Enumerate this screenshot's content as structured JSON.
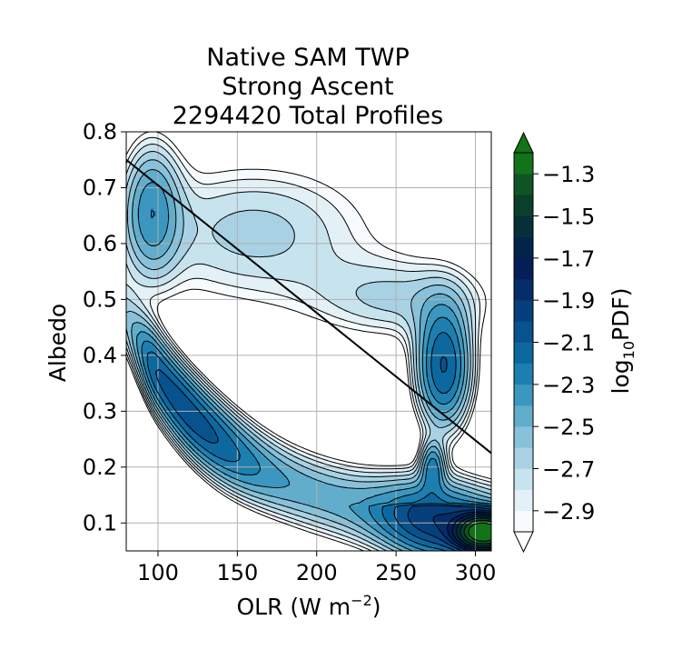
{
  "chart_data": {
    "type": "contourf",
    "title_lines": [
      "Native SAM TWP",
      "Strong Ascent",
      "2294420 Total Profiles"
    ],
    "xlabel": "OLR (W m",
    "xlabel_sup": "−2",
    "xlabel_tail": ")",
    "ylabel": "Albedo",
    "xlim": [
      80,
      310
    ],
    "ylim": [
      0.05,
      0.8
    ],
    "x_ticks": [
      100,
      150,
      200,
      250,
      300
    ],
    "x_tick_labels": [
      "100",
      "150",
      "200",
      "250",
      "300"
    ],
    "y_ticks": [
      0.1,
      0.2,
      0.3,
      0.4,
      0.5,
      0.6,
      0.7,
      0.8
    ],
    "y_tick_labels": [
      "0.1",
      "0.2",
      "0.3",
      "0.4",
      "0.5",
      "0.6",
      "0.7",
      "0.8"
    ],
    "grid": true,
    "reference_line": {
      "x": [
        80,
        310
      ],
      "y": [
        0.75,
        0.225
      ]
    },
    "colorbar": {
      "label_main": "log",
      "label_sub": "10",
      "label_tail": "PDF)",
      "label_prefix": "",
      "levels": [
        -3.0,
        -2.9,
        -2.8,
        -2.7,
        -2.6,
        -2.5,
        -2.4,
        -2.3,
        -2.2,
        -2.1,
        -2.0,
        -1.9,
        -1.8,
        -1.7,
        -1.6,
        -1.5,
        -1.4,
        -1.3
      ],
      "tick_values": [
        -2.9,
        -2.7,
        -2.5,
        -2.3,
        -2.1,
        -1.9,
        -1.7,
        -1.5,
        -1.3
      ],
      "tick_labels": [
        "−2.9",
        "−2.7",
        "−2.5",
        "−2.3",
        "−2.1",
        "−1.9",
        "−1.7",
        "−1.5",
        "−1.3"
      ],
      "extend": "both",
      "colors": [
        "#f7fbfd",
        "#e3f0f6",
        "#c7e3ee",
        "#a8d2e4",
        "#88c1d9",
        "#62adcc",
        "#3b97bf",
        "#1d7fb0",
        "#0d68a0",
        "#08528e",
        "#053f7c",
        "#042d6a",
        "#031f56",
        "#03244a",
        "#062f3a",
        "#0a3f2c",
        "#0e5424",
        "#127319"
      ],
      "under_color": "#ffffff",
      "over_color": "#127319"
    },
    "clusters": [
      {
        "name": "upper",
        "cx": 190,
        "cy": 0.55,
        "peaks": [
          [
            92,
            0.68,
            -2.8
          ],
          [
            100,
            0.6,
            -2.85
          ],
          [
            282,
            0.37,
            -2.55
          ]
        ]
      },
      {
        "name": "lower",
        "cx": 200,
        "cy": 0.15,
        "peaks": [
          [
            115,
            0.26,
            -2.55
          ],
          [
            270,
            0.08,
            -2.2
          ],
          [
            300,
            0.07,
            -1.5
          ]
        ]
      }
    ]
  }
}
